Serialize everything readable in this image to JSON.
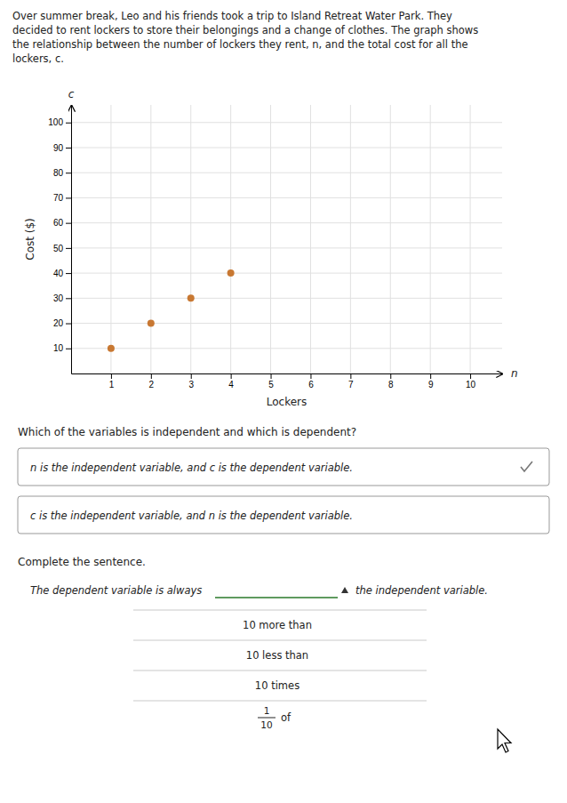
{
  "chart_data": {
    "type": "scatter",
    "title": "Over summer break, Leo and his friends took a trip to Island Retreat Water Park. They\ndecided to rent lockers to store their belongings and a change of clothes. The graph shows\nthe relationship between the number of lockers they rent, n, and the total cost for all the\nlockers, c.",
    "x_label": "Lockers",
    "y_label": "Cost ($)",
    "x_var": "n",
    "y_var": "c",
    "x": [
      1,
      2,
      3,
      4
    ],
    "values": [
      10,
      20,
      30,
      40
    ],
    "color": "#c87832",
    "xlim": [
      0,
      10.8
    ],
    "ylim": [
      0,
      107
    ],
    "xticks": [
      1,
      2,
      3,
      4,
      5,
      6,
      7,
      8,
      9,
      10
    ],
    "yticks": [
      10,
      20,
      30,
      40,
      50,
      60,
      70,
      80,
      90,
      100
    ],
    "grid": true,
    "question1": "Which of the variables is independent and which is dependent?",
    "options": [
      "n is the independent variable, and c is the dependent variable.",
      "c is the independent variable, and n is the dependent variable."
    ],
    "question2": "Complete the sentence.",
    "sentence_start": "The dependent variable is always",
    "sentence_end": "the independent variable.",
    "dropdown_options": [
      "10 more than",
      "10 less than",
      "10 times"
    ],
    "fraction_option": {
      "numerator": "1",
      "denominator": "10",
      "text": "of"
    }
  }
}
